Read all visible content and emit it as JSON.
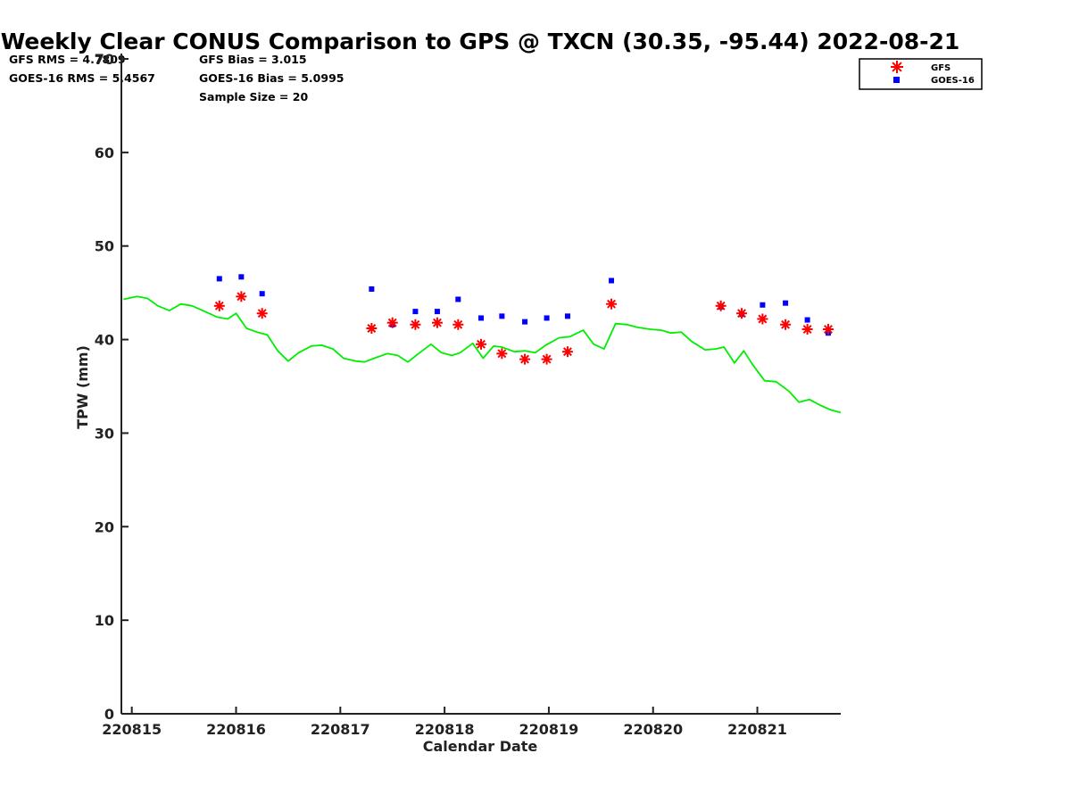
{
  "chart_data": {
    "type": "scatter",
    "title": "Weekly Clear CONUS Comparison to GPS @ TXCN (30.35, -95.44) 2022-08-21",
    "xlabel": "Calendar Date",
    "ylabel": "TPW (mm)",
    "xlim": [
      14.9,
      21.8
    ],
    "ylim": [
      0,
      70
    ],
    "x_ticks": [
      {
        "value": 15,
        "label": "220815"
      },
      {
        "value": 16,
        "label": "220816"
      },
      {
        "value": 17,
        "label": "220817"
      },
      {
        "value": 18,
        "label": "220818"
      },
      {
        "value": 19,
        "label": "220819"
      },
      {
        "value": 20,
        "label": "220820"
      },
      {
        "value": 21,
        "label": "220821"
      }
    ],
    "y_ticks": [
      0,
      10,
      20,
      30,
      40,
      50,
      60,
      70
    ],
    "stats": {
      "gfs_rms": "GFS RMS = 4.7809",
      "gfs_bias": "GFS Bias = 3.015",
      "goes_rms": "GOES-16 RMS = 5.4567",
      "goes_bias": "GOES-16 Bias = 5.0995",
      "sample_size": "Sample Size = 20"
    },
    "legend_position": "top-right",
    "legend": [
      {
        "name": "GFS",
        "marker": "asterisk",
        "color": "#ff0000"
      },
      {
        "name": "GOES-16",
        "marker": "square",
        "color": "#0000ff"
      }
    ],
    "gps_line": {
      "color": "#00ee00",
      "points": [
        [
          14.92,
          44.3
        ],
        [
          15.05,
          44.6
        ],
        [
          15.15,
          44.4
        ],
        [
          15.25,
          43.6
        ],
        [
          15.36,
          43.1
        ],
        [
          15.47,
          43.8
        ],
        [
          15.58,
          43.6
        ],
        [
          15.7,
          43.0
        ],
        [
          15.82,
          42.4
        ],
        [
          15.92,
          42.2
        ],
        [
          16.0,
          42.8
        ],
        [
          16.1,
          41.2
        ],
        [
          16.2,
          40.8
        ],
        [
          16.3,
          40.5
        ],
        [
          16.4,
          38.8
        ],
        [
          16.5,
          37.7
        ],
        [
          16.6,
          38.6
        ],
        [
          16.72,
          39.3
        ],
        [
          16.82,
          39.4
        ],
        [
          16.93,
          39.0
        ],
        [
          17.03,
          38.0
        ],
        [
          17.15,
          37.7
        ],
        [
          17.23,
          37.6
        ],
        [
          17.35,
          38.1
        ],
        [
          17.45,
          38.5
        ],
        [
          17.55,
          38.3
        ],
        [
          17.65,
          37.6
        ],
        [
          17.75,
          38.5
        ],
        [
          17.87,
          39.5
        ],
        [
          17.97,
          38.6
        ],
        [
          18.07,
          38.3
        ],
        [
          18.15,
          38.6
        ],
        [
          18.27,
          39.6
        ],
        [
          18.37,
          38.0
        ],
        [
          18.47,
          39.3
        ],
        [
          18.55,
          39.2
        ],
        [
          18.67,
          38.7
        ],
        [
          18.77,
          38.8
        ],
        [
          18.87,
          38.6
        ],
        [
          18.97,
          39.4
        ],
        [
          19.1,
          40.2
        ],
        [
          19.2,
          40.3
        ],
        [
          19.33,
          41.0
        ],
        [
          19.43,
          39.5
        ],
        [
          19.53,
          39.0
        ],
        [
          19.64,
          41.7
        ],
        [
          19.75,
          41.6
        ],
        [
          19.85,
          41.3
        ],
        [
          19.97,
          41.1
        ],
        [
          20.08,
          41.0
        ],
        [
          20.17,
          40.7
        ],
        [
          20.27,
          40.8
        ],
        [
          20.37,
          39.8
        ],
        [
          20.5,
          38.9
        ],
        [
          20.6,
          39.0
        ],
        [
          20.68,
          39.2
        ],
        [
          20.78,
          37.5
        ],
        [
          20.87,
          38.8
        ],
        [
          20.95,
          37.4
        ],
        [
          21.07,
          35.6
        ],
        [
          21.18,
          35.5
        ],
        [
          21.3,
          34.5
        ],
        [
          21.4,
          33.3
        ],
        [
          21.5,
          33.6
        ],
        [
          21.6,
          33.0
        ],
        [
          21.7,
          32.5
        ],
        [
          21.8,
          32.2
        ]
      ]
    },
    "series": [
      {
        "name": "GFS",
        "points": [
          [
            15.84,
            43.6
          ],
          [
            16.05,
            44.6
          ],
          [
            16.25,
            42.8
          ],
          [
            17.3,
            41.2
          ],
          [
            17.5,
            41.8
          ],
          [
            17.72,
            41.6
          ],
          [
            17.93,
            41.8
          ],
          [
            18.13,
            41.6
          ],
          [
            18.35,
            39.5
          ],
          [
            18.55,
            38.5
          ],
          [
            18.77,
            37.9
          ],
          [
            18.98,
            37.9
          ],
          [
            19.18,
            38.7
          ],
          [
            19.6,
            43.8
          ],
          [
            20.65,
            43.6
          ],
          [
            20.85,
            42.8
          ],
          [
            21.05,
            42.2
          ],
          [
            21.27,
            41.6
          ],
          [
            21.48,
            41.1
          ],
          [
            21.68,
            41.1
          ]
        ]
      },
      {
        "name": "GOES-16",
        "points": [
          [
            15.84,
            46.5
          ],
          [
            16.05,
            46.7
          ],
          [
            16.25,
            44.9
          ],
          [
            17.3,
            45.4
          ],
          [
            17.5,
            41.6
          ],
          [
            17.72,
            43.0
          ],
          [
            17.93,
            43.0
          ],
          [
            18.13,
            44.3
          ],
          [
            18.35,
            42.3
          ],
          [
            18.55,
            42.5
          ],
          [
            18.77,
            41.9
          ],
          [
            18.98,
            42.3
          ],
          [
            19.18,
            42.5
          ],
          [
            19.6,
            46.3
          ],
          [
            20.65,
            43.5
          ],
          [
            20.85,
            42.7
          ],
          [
            21.05,
            43.7
          ],
          [
            21.27,
            43.9
          ],
          [
            21.48,
            42.1
          ],
          [
            21.68,
            40.7
          ]
        ]
      }
    ]
  }
}
